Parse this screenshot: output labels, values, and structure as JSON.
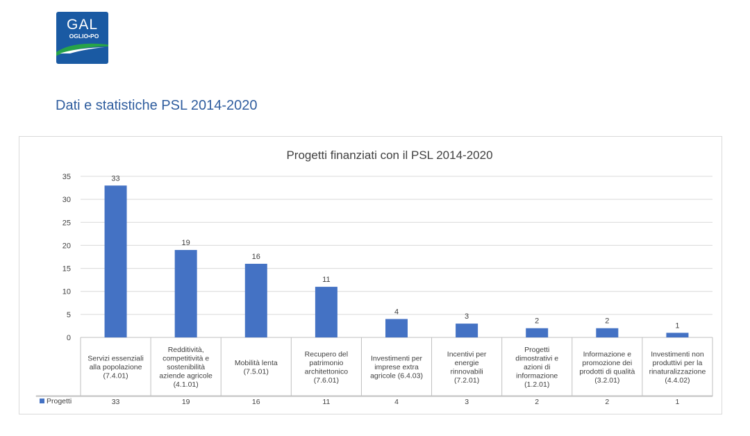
{
  "page": {
    "heading": "Dati e statistiche PSL 2014-2020",
    "logo": {
      "text_top": "GAL",
      "text_bottom": "OGLIO•PO",
      "color": "#1a5aa3",
      "accent": "#27a348"
    }
  },
  "chart_data": {
    "type": "bar",
    "title": "Progetti finanziati con il PSL 2014-2020",
    "categories": [
      [
        "Servizi essenziali",
        "alla popolazione",
        "(7.4.01)"
      ],
      [
        "Redditività,",
        "competitività e",
        "sostenibilità",
        "aziende agricole",
        "(4.1.01)"
      ],
      [
        "Mobilità lenta",
        "(7.5.01)"
      ],
      [
        "Recupero del",
        "patrimonio",
        "architettonico",
        "(7.6.01)"
      ],
      [
        "Investimenti per",
        "imprese extra",
        "agricole (6.4.03)"
      ],
      [
        "Incentivi per",
        "energie",
        "rinnovabili",
        "(7.2.01)"
      ],
      [
        "Progetti",
        "dimostrativi e",
        "azioni di",
        "informazione",
        "(1.2.01)"
      ],
      [
        "Informazione e",
        "promozione dei",
        "prodotti di qualità",
        "(3.2.01)"
      ],
      [
        "Investimenti non",
        "produttivi per la",
        "rinaturalizzazione",
        "(4.4.02)"
      ]
    ],
    "series": [
      {
        "name": "Progetti",
        "values": [
          33,
          19,
          16,
          11,
          4,
          3,
          2,
          2,
          1
        ],
        "color": "#4472c4"
      }
    ],
    "ylim": [
      0,
      35
    ],
    "yticks": [
      0,
      5,
      10,
      15,
      20,
      25,
      30,
      35
    ],
    "grid": true,
    "data_table": true,
    "legend": "data-table"
  }
}
